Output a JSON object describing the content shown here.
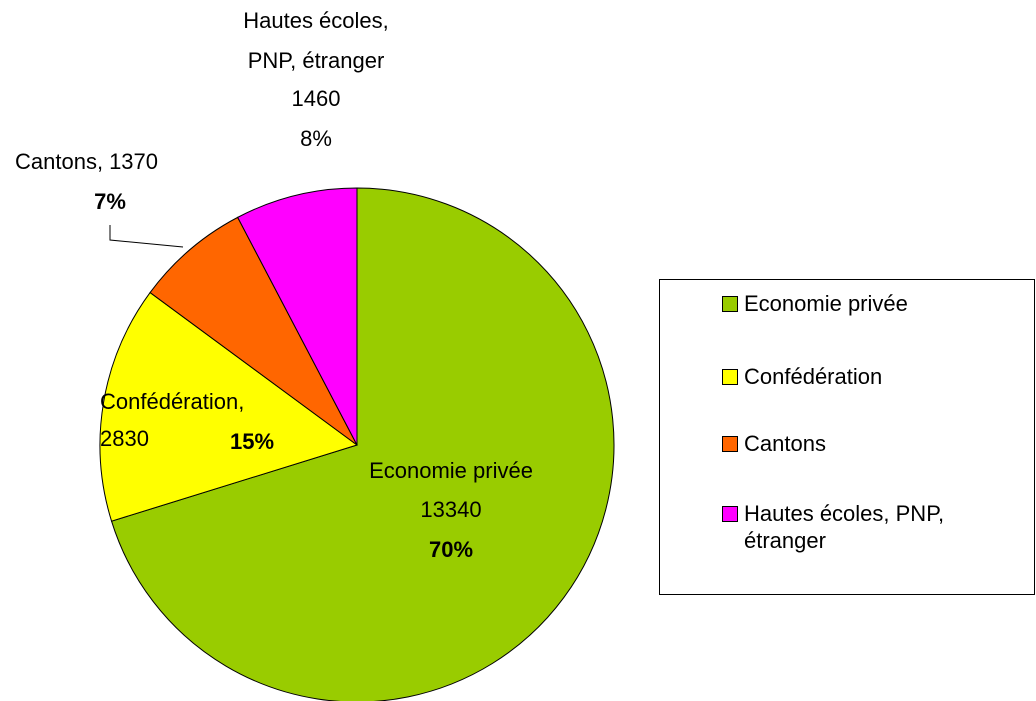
{
  "chart_data": {
    "type": "pie",
    "categories": [
      "Economie privée",
      "Confédération",
      "Cantons",
      "Hautes écoles, PNP, étranger"
    ],
    "values": [
      13340,
      2830,
      1370,
      1460
    ],
    "percent_labels": [
      "70%",
      "15%",
      "7%",
      "8%"
    ],
    "label_names": [
      [
        "Economie privée"
      ],
      [
        "Confédération,"
      ],
      [
        "Cantons,"
      ],
      [
        "Hautes écoles,",
        "PNP, étranger"
      ]
    ],
    "colors": [
      "#99cc00",
      "#ffff00",
      "#ff6600",
      "#ff00ff"
    ],
    "legend": "right"
  }
}
